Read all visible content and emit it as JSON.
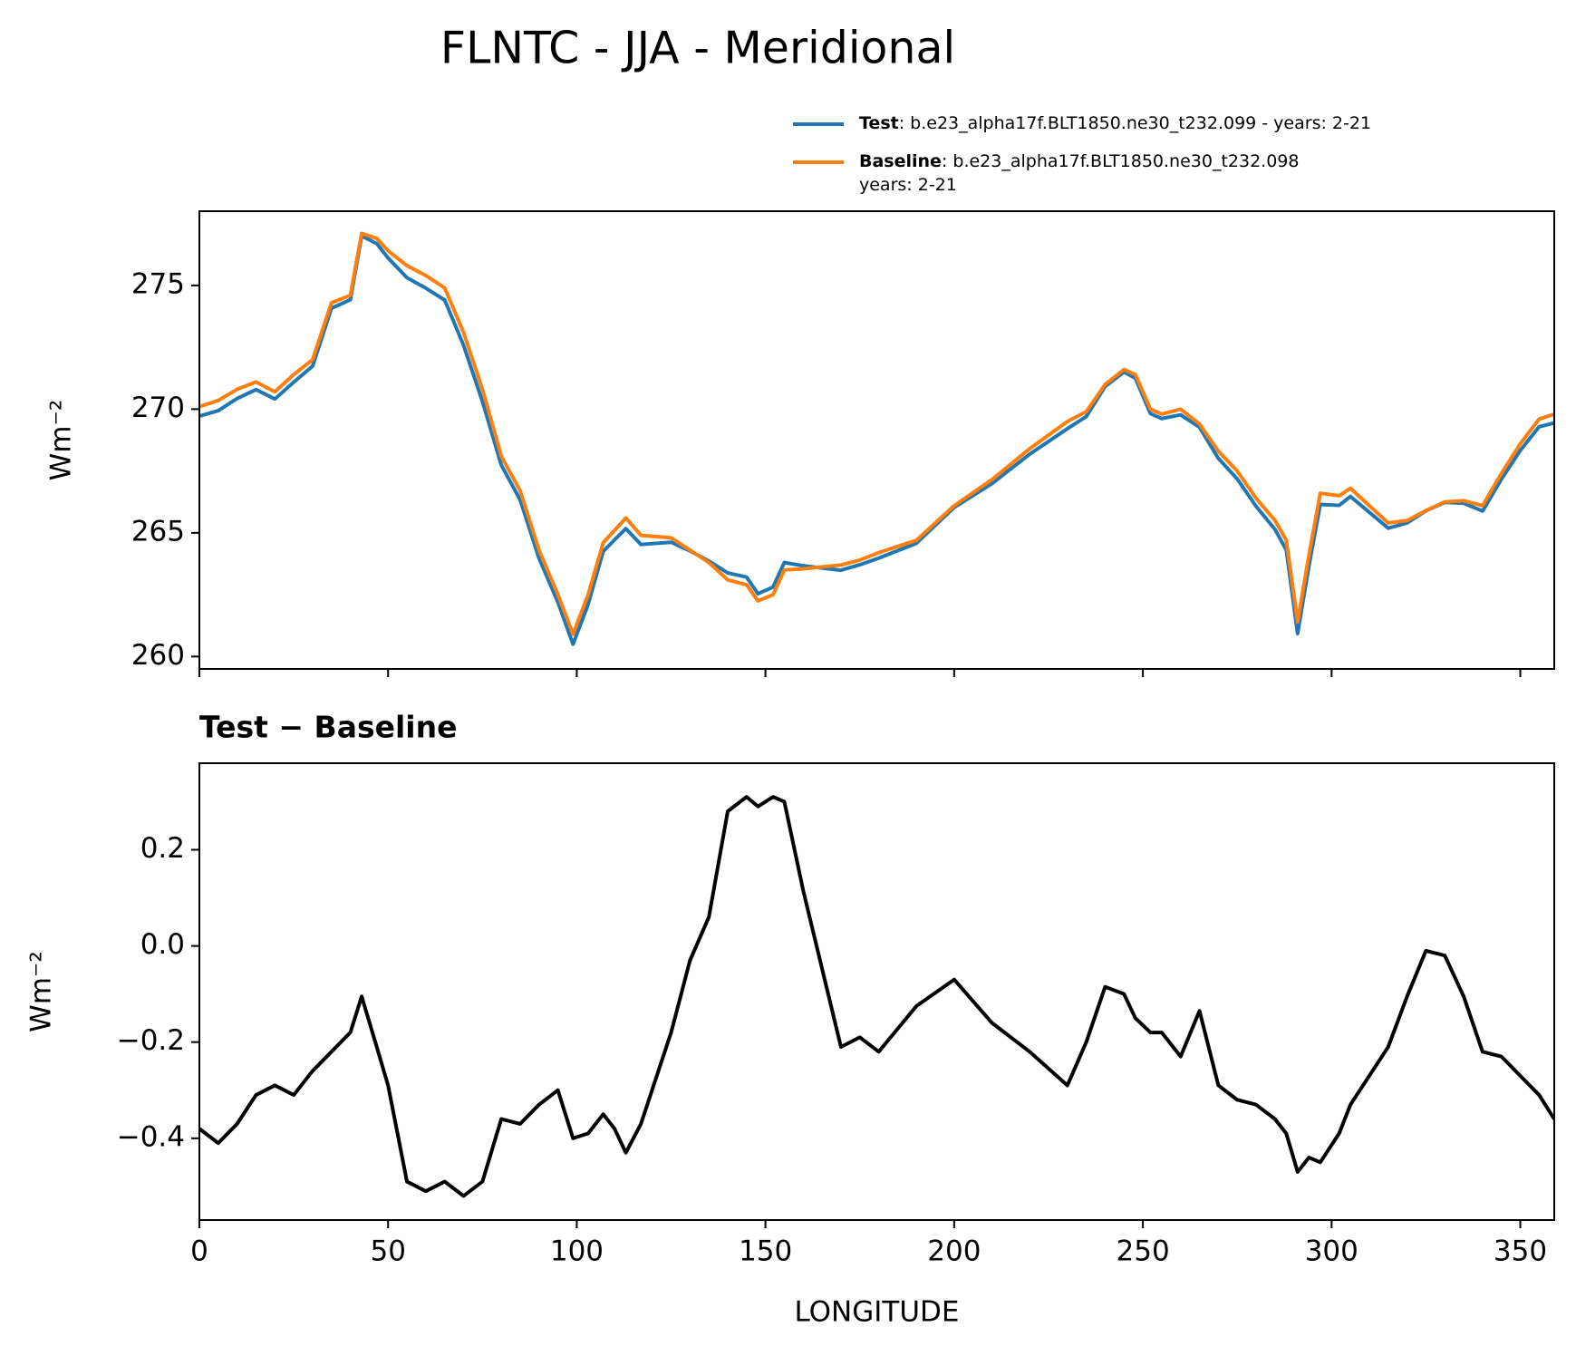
{
  "title": "FLNTC - JJA - Meridional",
  "chart_data": [
    {
      "type": "line",
      "ylabel": "Wm⁻²",
      "x": [
        0,
        5,
        10,
        15,
        20,
        25,
        30,
        35,
        40,
        43,
        47,
        50,
        55,
        60,
        65,
        70,
        75,
        80,
        85,
        90,
        95,
        99,
        103,
        107,
        110,
        113,
        117,
        125,
        130,
        135,
        140,
        145,
        148,
        152,
        155,
        160,
        170,
        175,
        180,
        190,
        200,
        210,
        220,
        230,
        235,
        240,
        245,
        248,
        252,
        255,
        260,
        265,
        270,
        275,
        280,
        285,
        288,
        291,
        294,
        297,
        302,
        305,
        310,
        315,
        320,
        325,
        330,
        335,
        340,
        345,
        350,
        355,
        359
      ],
      "series": [
        {
          "name": "Test",
          "label_lines": [
            ": b.e23_alpha17f.BLT1850.ne30_t232.099 - years: 2-21"
          ],
          "color": "#1f77b4",
          "values": [
            269.72,
            269.94,
            270.43,
            270.79,
            270.41,
            271.09,
            271.74,
            274.08,
            274.42,
            277.0,
            276.69,
            276.11,
            275.31,
            274.89,
            274.41,
            272.58,
            270.31,
            267.74,
            266.33,
            263.97,
            262.2,
            260.5,
            262.11,
            264.25,
            264.72,
            265.17,
            264.53,
            264.62,
            264.27,
            263.86,
            263.38,
            263.21,
            262.54,
            262.81,
            263.8,
            263.67,
            263.49,
            263.71,
            263.98,
            264.58,
            266.03,
            266.99,
            268.18,
            269.21,
            269.7,
            270.92,
            271.5,
            271.25,
            269.82,
            269.62,
            269.77,
            269.27,
            268.01,
            267.18,
            266.07,
            265.14,
            264.31,
            260.93,
            263.66,
            266.15,
            266.11,
            266.47,
            265.83,
            265.19,
            265.4,
            265.89,
            266.23,
            266.2,
            265.88,
            267.17,
            268.33,
            269.29,
            269.44
          ]
        },
        {
          "name": "Baseline",
          "label_lines": [
            ": b.e23_alpha17f.BLT1850.ne30_t232.098",
            "years: 2-21"
          ],
          "color": "#ff7f0e",
          "values": [
            270.1,
            270.35,
            270.8,
            271.1,
            270.7,
            271.4,
            272.0,
            274.3,
            274.6,
            277.1,
            276.9,
            276.4,
            275.8,
            275.4,
            274.9,
            273.1,
            270.8,
            268.1,
            266.7,
            264.3,
            262.5,
            260.9,
            262.5,
            264.6,
            265.1,
            265.6,
            264.9,
            264.8,
            264.3,
            263.8,
            263.1,
            262.9,
            262.25,
            262.5,
            263.5,
            263.55,
            263.7,
            263.9,
            264.2,
            264.7,
            266.1,
            267.15,
            268.4,
            269.5,
            269.9,
            271.0,
            271.6,
            271.4,
            270.0,
            269.8,
            270.0,
            269.4,
            268.3,
            267.5,
            266.4,
            265.5,
            264.7,
            261.4,
            264.1,
            266.6,
            266.5,
            266.8,
            266.1,
            265.4,
            265.5,
            265.9,
            266.25,
            266.3,
            266.1,
            267.4,
            268.6,
            269.6,
            269.8
          ]
        }
      ],
      "xlim": [
        0,
        359
      ],
      "xticks": [
        0,
        50,
        100,
        150,
        200,
        250,
        300,
        350
      ],
      "xtick_labels": false,
      "ylim": [
        259.5,
        278.0
      ],
      "yticks": [
        260,
        265,
        270,
        275
      ],
      "legend": "upper right"
    },
    {
      "type": "line",
      "title": "Test − Baseline",
      "xlabel": "LONGITUDE",
      "ylabel": "Wm⁻²",
      "x": [
        0,
        5,
        10,
        15,
        20,
        25,
        30,
        35,
        40,
        43,
        47,
        50,
        55,
        60,
        65,
        70,
        75,
        80,
        85,
        90,
        95,
        99,
        103,
        107,
        110,
        113,
        117,
        125,
        130,
        135,
        140,
        145,
        148,
        152,
        155,
        160,
        170,
        175,
        180,
        190,
        200,
        210,
        220,
        230,
        235,
        240,
        245,
        248,
        252,
        255,
        260,
        265,
        270,
        275,
        280,
        285,
        288,
        291,
        294,
        297,
        302,
        305,
        310,
        315,
        320,
        325,
        330,
        335,
        340,
        345,
        350,
        355,
        359
      ],
      "color": "#000000",
      "values": [
        -0.38,
        -0.41,
        -0.37,
        -0.31,
        -0.29,
        -0.31,
        -0.26,
        -0.22,
        -0.18,
        -0.105,
        -0.21,
        -0.29,
        -0.49,
        -0.51,
        -0.49,
        -0.52,
        -0.49,
        -0.36,
        -0.37,
        -0.33,
        -0.3,
        -0.4,
        -0.39,
        -0.35,
        -0.38,
        -0.43,
        -0.37,
        -0.18,
        -0.03,
        0.06,
        0.28,
        0.31,
        0.29,
        0.31,
        0.3,
        0.115,
        -0.21,
        -0.19,
        -0.22,
        -0.125,
        -0.07,
        -0.16,
        -0.22,
        -0.29,
        -0.2,
        -0.085,
        -0.1,
        -0.15,
        -0.18,
        -0.18,
        -0.23,
        -0.135,
        -0.29,
        -0.32,
        -0.33,
        -0.36,
        -0.39,
        -0.47,
        -0.44,
        -0.45,
        -0.39,
        -0.33,
        -0.27,
        -0.21,
        -0.105,
        -0.01,
        -0.02,
        -0.105,
        -0.22,
        -0.23,
        -0.27,
        -0.31,
        -0.36
      ],
      "xlim": [
        0,
        359
      ],
      "xticks": [
        0,
        50,
        100,
        150,
        200,
        250,
        300,
        350
      ],
      "xtick_labels": true,
      "ylim": [
        -0.57,
        0.38
      ],
      "yticks": [
        {
          "value": -0.4,
          "label": "−0.4"
        },
        {
          "value": -0.2,
          "label": "−0.2"
        },
        {
          "value": 0,
          "label": "0.0"
        },
        0.2
      ]
    }
  ]
}
